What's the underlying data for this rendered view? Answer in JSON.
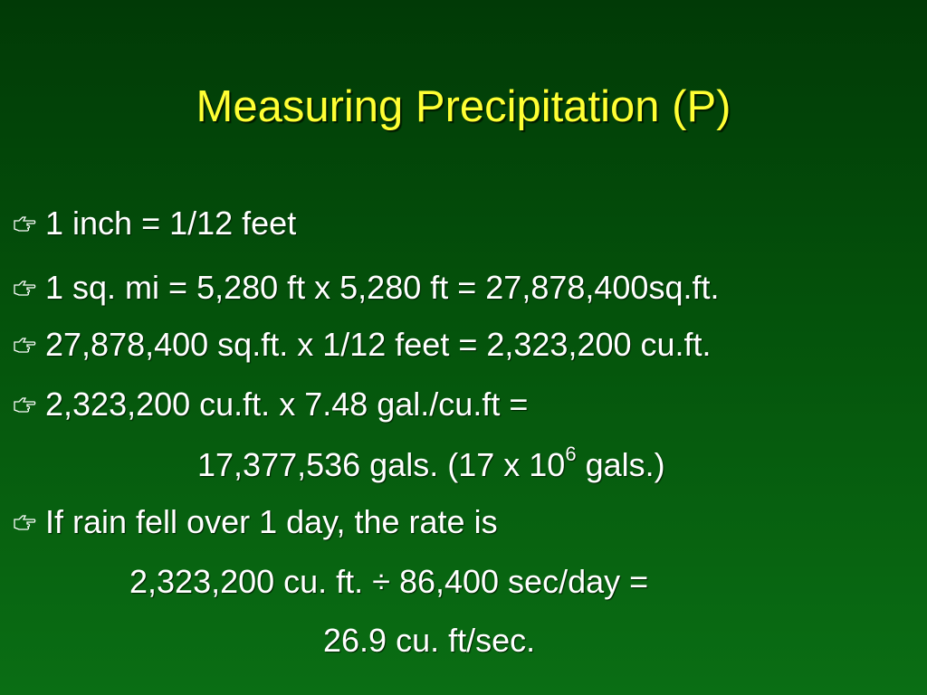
{
  "title": "Measuring Precipitation (P)",
  "bullets": [
    {
      "text": "1 inch = 1/12 feet"
    },
    {
      "text": "1 sq. mi = 5,280 ft x 5,280 ft = 27,878,400sq.ft."
    },
    {
      "text": "27,878,400 sq.ft. x 1/12 feet = 2,323,200 cu.ft."
    },
    {
      "text": "2,323,200 cu.ft. x 7.48 gal./cu.ft =",
      "continuation": {
        "parts": [
          "17,377,536 gals. (17 x 10",
          "6",
          " gals.)"
        ]
      }
    },
    {
      "text": "If rain fell over 1 day, the rate is",
      "continuation": {
        "lines": [
          "2,323,200 cu. ft. ÷ 86,400 sec/day =",
          "26.9 cu. ft/sec."
        ]
      }
    }
  ]
}
